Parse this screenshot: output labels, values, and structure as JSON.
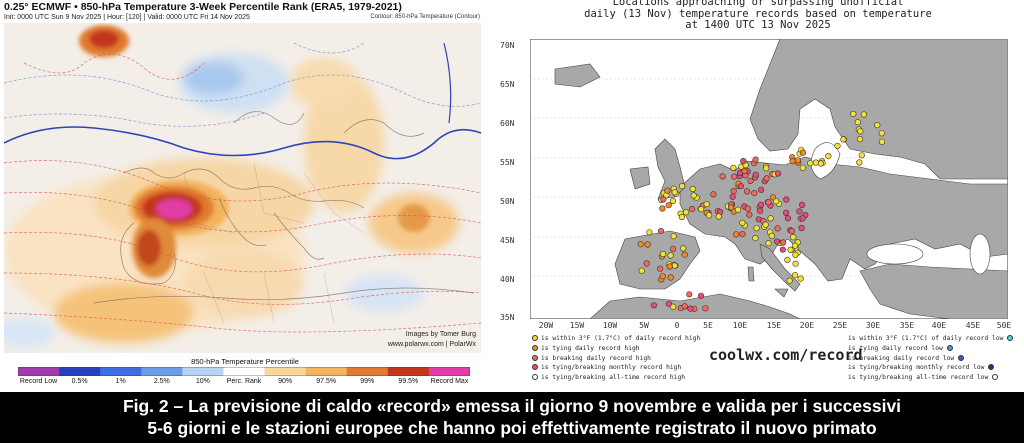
{
  "left_panel": {
    "title": "0.25° ECMWF • 850-hPa Temperature 3-Week Percentile Rank (ERA5, 1979-2021)",
    "subtitle": "Init: 0000 UTC Sun 9 Nov 2025 | Hour: [120] | Valid: 0000 UTC Fri 14 Nov 2025",
    "contour_note": "Contour: 850-hPa Temperature (Contour)",
    "credit_1": "Images by Tomer Burg",
    "credit_2": "www.polarwx.com | PolarWx",
    "colorbar_title": "850-hPa Temperature Percentile",
    "colorbar_labels": [
      "Record Low",
      "0.5%",
      "1%",
      "2.5%",
      "10%",
      "Perc. Rank",
      "90%",
      "97.5%",
      "99%",
      "99.5%",
      "Record Max"
    ],
    "colorbar_colors": [
      "#a23ab0",
      "#2a3fbf",
      "#3f6ee0",
      "#6c9de8",
      "#b7d4f2",
      "#ffffff",
      "#f7d79a",
      "#f2b35c",
      "#e07a2e",
      "#c2361b",
      "#e23ca5"
    ]
  },
  "right_panel": {
    "title_lines": [
      "Locations approaching or surpassing unofficial",
      "daily (13 Nov) temperature records based on temperature",
      "at 1400 UTC 13 Nov 2025"
    ],
    "lat_labels": [
      "70N",
      "65N",
      "60N",
      "55N",
      "50N",
      "45N",
      "40N",
      "35N"
    ],
    "lon_labels": [
      "20W",
      "15W",
      "10W",
      "5W",
      "0",
      "5E",
      "10E",
      "15E",
      "20E",
      "25E",
      "30E",
      "35E",
      "40E",
      "45E",
      "50E"
    ],
    "legend_left": [
      {
        "text": "is within 3°F (1.7°C) of daily record high",
        "color": "#f2e234"
      },
      {
        "text": "is tying daily record high",
        "color": "#f08a24"
      },
      {
        "text": "is breaking daily record high",
        "color": "#f26a5a"
      },
      {
        "text": "is tying/breaking monthly record high",
        "color": "#e84a7a"
      },
      {
        "text": "is tying/breaking all-time record high",
        "color": "#ffffff"
      }
    ],
    "legend_right": [
      {
        "text": "is within 3°F (1.7°C) of daily record low",
        "color": "#4fd6d0"
      },
      {
        "text": "is tying daily record low",
        "color": "#3a9ee0"
      },
      {
        "text": "is breaking daily record low",
        "color": "#3a5ad0"
      },
      {
        "text": "is tying/breaking monthly record low",
        "color": "#2a2aa0"
      },
      {
        "text": "is tying/breaking all-time record low",
        "color": "#ffffff"
      }
    ],
    "url": "coolwx.com/record"
  },
  "caption": {
    "line1": "Fig. 2 – La previsione di caldo «record» emessa il giorno 9 novembre e valida per i successivi",
    "line2": "5-6 giorni e le stazioni europee che hanno poi effettivamente registrato il nuovo primato"
  }
}
